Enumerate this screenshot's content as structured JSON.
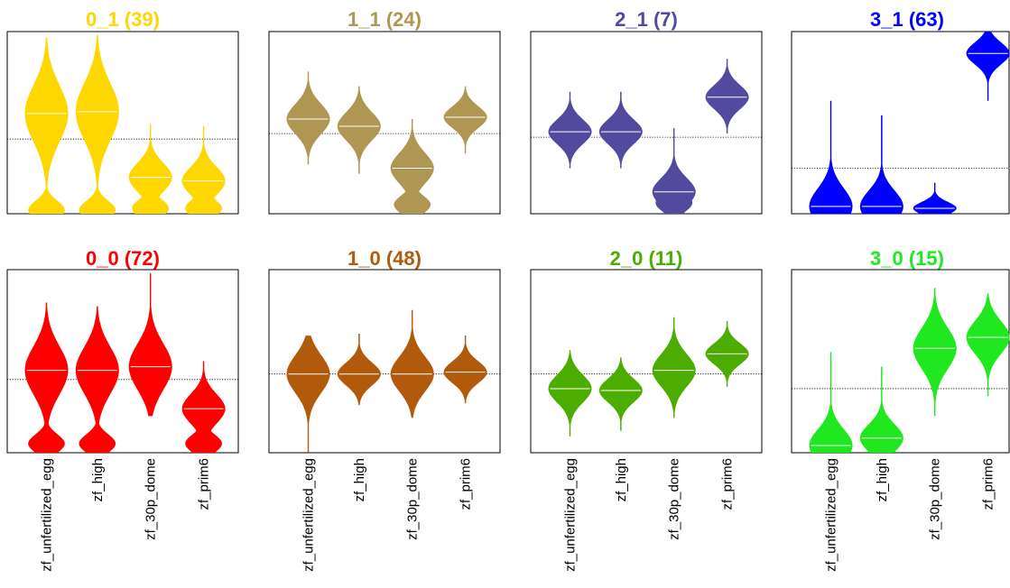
{
  "categories": [
    "zf_unfertilized_egg",
    "zf_high",
    "zf_30p_dome",
    "zf_prim6"
  ],
  "chart_data": [
    {
      "type": "violin",
      "title": "0_1 (39)",
      "color": "#FFD700",
      "baseline": 0.41,
      "series": [
        {
          "category": "zf_unfertilized_egg",
          "median": 0.55,
          "min": 0.0,
          "max": 0.97,
          "lower_mode": 0.02
        },
        {
          "category": "zf_high",
          "median": 0.56,
          "min": 0.0,
          "max": 0.98,
          "lower_mode": 0.02
        },
        {
          "category": "zf_30p_dome",
          "median": 0.2,
          "min": 0.0,
          "max": 0.49,
          "lower_mode": 0.03
        },
        {
          "category": "zf_prim6",
          "median": 0.18,
          "min": 0.0,
          "max": 0.48,
          "lower_mode": 0.03
        }
      ]
    },
    {
      "type": "violin",
      "title": "1_1 (24)",
      "color": "#AF9653",
      "baseline": 0.44,
      "series": [
        {
          "category": "zf_unfertilized_egg",
          "median": 0.52,
          "min": 0.27,
          "max": 0.78
        },
        {
          "category": "zf_high",
          "median": 0.48,
          "min": 0.22,
          "max": 0.7
        },
        {
          "category": "zf_30p_dome",
          "median": 0.25,
          "min": 0.0,
          "max": 0.52,
          "lower_mode": 0.05
        },
        {
          "category": "zf_prim6",
          "median": 0.53,
          "min": 0.33,
          "max": 0.7
        }
      ]
    },
    {
      "type": "violin",
      "title": "2_1 (7)",
      "color": "#524A9F",
      "baseline": 0.42,
      "series": [
        {
          "category": "zf_unfertilized_egg",
          "median": 0.45,
          "min": 0.25,
          "max": 0.67
        },
        {
          "category": "zf_high",
          "median": 0.45,
          "min": 0.25,
          "max": 0.67
        },
        {
          "category": "zf_30p_dome",
          "median": 0.12,
          "min": 0.0,
          "max": 0.47,
          "lower_mode": 0.06
        },
        {
          "category": "zf_prim6",
          "median": 0.64,
          "min": 0.44,
          "max": 0.85
        }
      ]
    },
    {
      "type": "violin",
      "title": "3_1 (63)",
      "color": "#0000FF",
      "baseline": 0.25,
      "series": [
        {
          "category": "zf_unfertilized_egg",
          "median": 0.04,
          "min": 0.0,
          "max": 0.62
        },
        {
          "category": "zf_high",
          "median": 0.04,
          "min": 0.0,
          "max": 0.54
        },
        {
          "category": "zf_30p_dome",
          "median": 0.03,
          "min": 0.0,
          "max": 0.17
        },
        {
          "category": "zf_prim6",
          "median": 0.88,
          "min": 0.62,
          "max": 1.0
        }
      ]
    },
    {
      "type": "violin",
      "title": "0_0 (72)",
      "color": "#FF0000",
      "baseline": 0.4,
      "series": [
        {
          "category": "zf_unfertilized_egg",
          "median": 0.45,
          "min": 0.0,
          "max": 0.82,
          "lower_mode": 0.05
        },
        {
          "category": "zf_high",
          "median": 0.45,
          "min": 0.0,
          "max": 0.8,
          "lower_mode": 0.05
        },
        {
          "category": "zf_30p_dome",
          "median": 0.47,
          "min": 0.2,
          "max": 0.98
        },
        {
          "category": "zf_prim6",
          "median": 0.24,
          "min": 0.0,
          "max": 0.5,
          "lower_mode": 0.05
        }
      ]
    },
    {
      "type": "violin",
      "title": "1_0 (48)",
      "color": "#B15A0B",
      "baseline": 0.43,
      "series": [
        {
          "category": "zf_unfertilized_egg",
          "median": 0.43,
          "min": 0.0,
          "max": 0.64
        },
        {
          "category": "zf_high",
          "median": 0.43,
          "min": 0.26,
          "max": 0.65
        },
        {
          "category": "zf_30p_dome",
          "median": 0.43,
          "min": 0.19,
          "max": 0.78
        },
        {
          "category": "zf_prim6",
          "median": 0.44,
          "min": 0.27,
          "max": 0.64
        }
      ]
    },
    {
      "type": "violin",
      "title": "2_0 (11)",
      "color": "#4DAC00",
      "baseline": 0.43,
      "series": [
        {
          "category": "zf_unfertilized_egg",
          "median": 0.35,
          "min": 0.09,
          "max": 0.56
        },
        {
          "category": "zf_high",
          "median": 0.34,
          "min": 0.12,
          "max": 0.52
        },
        {
          "category": "zf_30p_dome",
          "median": 0.45,
          "min": 0.19,
          "max": 0.74
        },
        {
          "category": "zf_prim6",
          "median": 0.54,
          "min": 0.36,
          "max": 0.72
        }
      ]
    },
    {
      "type": "violin",
      "title": "3_0 (15)",
      "color": "#1FE81F",
      "baseline": 0.35,
      "series": [
        {
          "category": "zf_unfertilized_egg",
          "median": 0.04,
          "min": 0.0,
          "max": 0.55
        },
        {
          "category": "zf_high",
          "median": 0.08,
          "min": 0.0,
          "max": 0.47
        },
        {
          "category": "zf_30p_dome",
          "median": 0.57,
          "min": 0.2,
          "max": 0.9
        },
        {
          "category": "zf_prim6",
          "median": 0.63,
          "min": 0.31,
          "max": 0.87
        }
      ]
    }
  ]
}
